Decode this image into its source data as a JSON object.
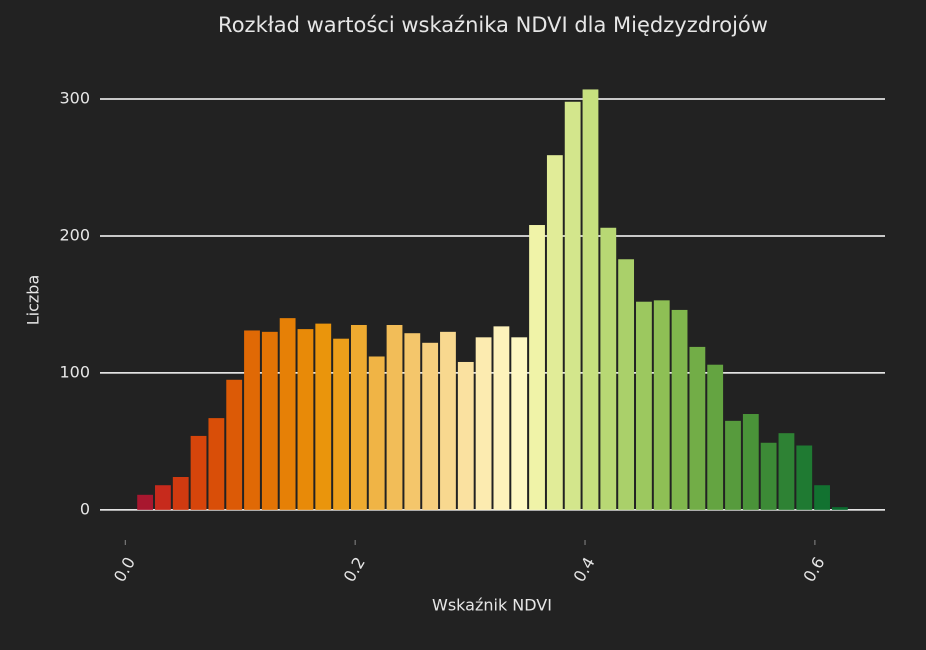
{
  "chart_data": {
    "type": "histogram",
    "title": "Rozkład wartości wskaźnika NDVI dla Międzyzdrojów",
    "x_label": "Wskaźnik NDVI",
    "y_label": "Liczba",
    "bins": [
      0.0095,
      0.025,
      0.0405,
      0.056,
      0.0715,
      0.087,
      0.1025,
      0.118,
      0.1335,
      0.149,
      0.1645,
      0.18,
      0.1955,
      0.211,
      0.2265,
      0.242,
      0.2575,
      0.273,
      0.2885,
      0.304,
      0.3195,
      0.335,
      0.3505,
      0.366,
      0.3815,
      0.397,
      0.4125,
      0.428,
      0.4435,
      0.459,
      0.4745,
      0.49,
      0.5055,
      0.521,
      0.5365,
      0.552,
      0.5675,
      0.583,
      0.5985,
      0.614,
      0.6295
    ],
    "values": [
      11,
      18,
      24,
      54,
      67,
      95,
      131,
      130,
      140,
      132,
      136,
      125,
      135,
      112,
      135,
      129,
      122,
      130,
      108,
      126,
      134,
      126,
      208,
      259,
      298,
      307,
      206,
      183,
      152,
      153,
      146,
      119,
      106,
      65,
      70,
      49,
      56,
      47,
      18,
      2
    ],
    "colors": [
      "#a8172f",
      "#c72a1c",
      "#d03a10",
      "#d6450b",
      "#d94e08",
      "#dc5a06",
      "#e06905",
      "#e37405",
      "#e68006",
      "#e88a08",
      "#ea950c",
      "#ec9f1a",
      "#eeaa30",
      "#f0b445",
      "#f2bd58",
      "#f4c66b",
      "#f6cf7e",
      "#f8d88f",
      "#fae1a0",
      "#fcebb0",
      "#fdf2bb",
      "#fef8c3",
      "#f0f3a8",
      "#e1ec98",
      "#d3e68c",
      "#c6e07f",
      "#b8d874",
      "#aad06a",
      "#9cc85f",
      "#8ebf55",
      "#80b74d",
      "#72ad47",
      "#64a441",
      "#579b3d",
      "#4a9339",
      "#3c8a36",
      "#2e8234",
      "#1f7a32",
      "#127230",
      "#0a6a2e"
    ],
    "xlim": [
      -0.022,
      0.661
    ],
    "ylim": [
      -22,
      328.5
    ],
    "xticks": [
      {
        "value": 0,
        "label": "0.0"
      },
      0.2,
      0.4,
      0.6
    ],
    "yticks": [
      0,
      100,
      200,
      300
    ],
    "grid": true
  }
}
